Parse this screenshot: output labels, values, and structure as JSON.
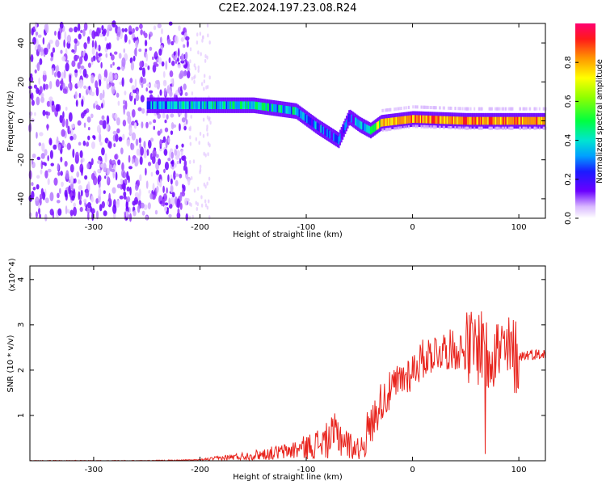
{
  "title": "C2E2.2024.197.23.08.R24",
  "colors": {
    "line": "#e8231c",
    "spectrogram_low": "#e3c6ff",
    "spectrogram_mid": "#6a00ff",
    "spectrogram_high": "#ff2020"
  },
  "chart_data": [
    {
      "type": "heatmap",
      "xlabel": "Height of straight line (km)",
      "ylabel": "Frequency (Hz)",
      "xlim": [
        -360,
        125
      ],
      "ylim": [
        -50,
        50
      ],
      "xticks": [
        -300,
        -200,
        -100,
        0,
        100
      ],
      "yticks": [
        -40,
        -20,
        0,
        20,
        40
      ],
      "colorbar": {
        "label": "Normalized spectral amplitude",
        "range": [
          0.0,
          1.0
        ],
        "ticks": [
          0.0,
          0.2,
          0.4,
          0.6,
          0.8
        ],
        "colormap": "rainbow"
      },
      "ridge": {
        "description_points_x_km": [
          -250,
          -200,
          -150,
          -110,
          -90,
          -70,
          -60,
          -50,
          -40,
          -30,
          0,
          50,
          100,
          125
        ],
        "frequency_hz": [
          8,
          8,
          8,
          5,
          -3,
          -10,
          2,
          -2,
          -5,
          -1,
          1,
          0,
          0,
          0
        ],
        "amplitude": [
          0.4,
          0.45,
          0.5,
          0.45,
          0.35,
          0.3,
          0.3,
          0.4,
          0.5,
          0.8,
          0.9,
          0.95,
          0.95,
          0.9
        ]
      },
      "grid": false
    },
    {
      "type": "line",
      "xlabel": "Height of straight line (km)",
      "ylabel": "SNR (10 * v/v)",
      "y_multiplier": "(x10^4)",
      "xlim": [
        -360,
        125
      ],
      "ylim": [
        0,
        4.3
      ],
      "xticks": [
        -300,
        -200,
        -100,
        0,
        100
      ],
      "yticks": [
        1,
        2,
        3,
        4
      ],
      "x": [
        -360,
        -300,
        -250,
        -200,
        -180,
        -150,
        -120,
        -100,
        -80,
        -70,
        -60,
        -50,
        -40,
        -30,
        -20,
        -10,
        0,
        10,
        20,
        30,
        40,
        50,
        60,
        65,
        70,
        75,
        80,
        90,
        100,
        110,
        125
      ],
      "y": [
        0.0,
        0.0,
        0.0,
        0.02,
        0.06,
        0.12,
        0.2,
        0.3,
        0.45,
        0.6,
        0.35,
        0.25,
        0.7,
        1.3,
        1.55,
        1.8,
        2.0,
        2.25,
        2.4,
        2.45,
        2.45,
        2.45,
        2.5,
        2.6,
        2.3,
        2.5,
        2.4,
        2.35,
        2.3,
        2.35,
        2.35
      ],
      "grid": false
    }
  ]
}
